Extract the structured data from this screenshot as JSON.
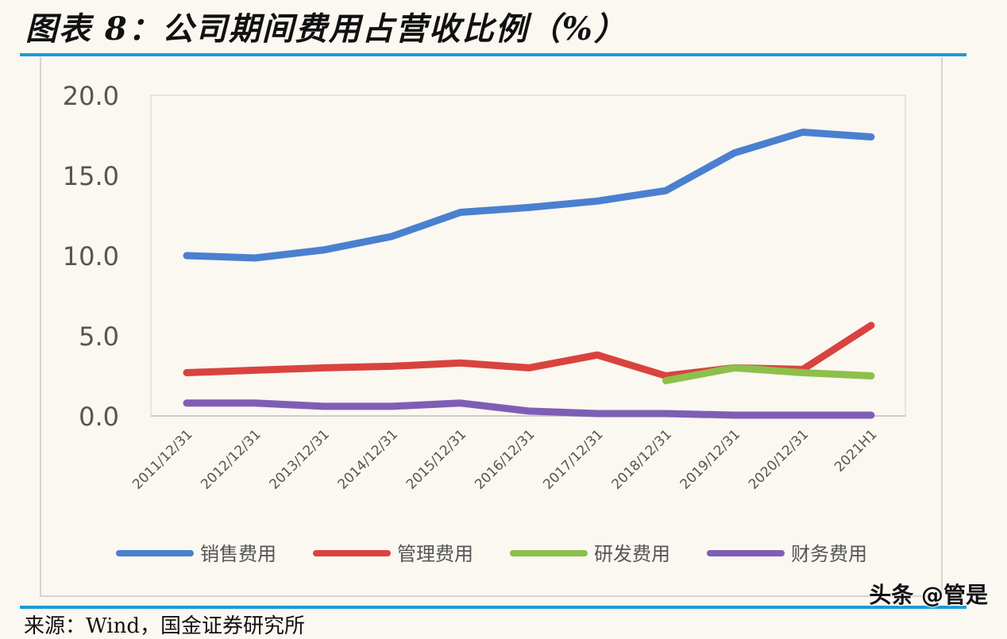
{
  "title": "图表 8：公司期间费用占营收比例（%）",
  "source": "来源：Wind，国金证券研究所",
  "watermark": "头条 @管是",
  "chart_data": {
    "type": "line",
    "title": "",
    "xlabel": "",
    "ylabel": "",
    "ylim": [
      0,
      20
    ],
    "yticks": [
      "0.0",
      "5.0",
      "10.0",
      "15.0",
      "20.0"
    ],
    "grid": false,
    "legend": "bottom",
    "categories": [
      "2011/12/31",
      "2012/12/31",
      "2013/12/31",
      "2014/12/31",
      "2015/12/31",
      "2016/12/31",
      "2017/12/31",
      "2018/12/31",
      "2019/12/31",
      "2020/12/31",
      "2021H1"
    ],
    "series": [
      {
        "name": "销售费用",
        "color": "#4a80cf",
        "values": [
          10.0,
          9.85,
          10.35,
          11.2,
          12.7,
          13.0,
          13.4,
          14.05,
          16.4,
          17.7,
          17.4
        ]
      },
      {
        "name": "管理费用",
        "color": "#d9433f",
        "values": [
          2.7,
          2.85,
          3.0,
          3.1,
          3.3,
          3.0,
          3.8,
          2.5,
          3.0,
          2.9,
          5.65
        ]
      },
      {
        "name": "研发费用",
        "color": "#8cc04a",
        "values": [
          null,
          null,
          null,
          null,
          null,
          null,
          null,
          2.2,
          3.0,
          2.7,
          2.5
        ]
      },
      {
        "name": "财务费用",
        "color": "#7e5eb5",
        "values": [
          0.8,
          0.8,
          0.6,
          0.6,
          0.8,
          0.3,
          0.15,
          0.15,
          0.05,
          0.05,
          0.05
        ]
      }
    ]
  }
}
